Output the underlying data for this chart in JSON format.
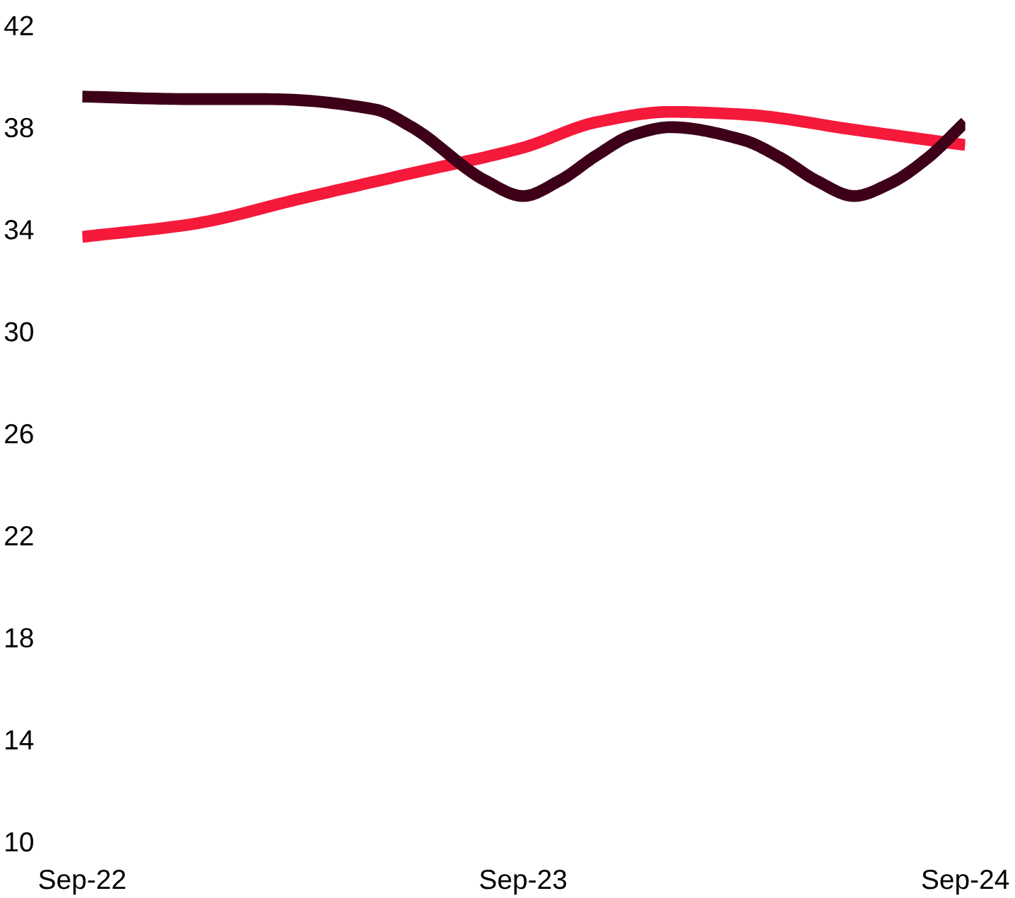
{
  "chart_data": {
    "type": "line",
    "xlim": [
      "2022-09",
      "2024-09"
    ],
    "xticks": [
      {
        "value": "2022-09",
        "label": "Sep-22"
      },
      {
        "value": "2023-09",
        "label": "Sep-23"
      },
      {
        "value": "2024-09",
        "label": "Sep-24"
      }
    ],
    "ylim": [
      10,
      42
    ],
    "yticks": [
      10,
      14,
      18,
      22,
      26,
      30,
      34,
      38,
      42
    ],
    "marker": "none",
    "line_style": "solid",
    "series": [
      {
        "color": "#f5193a",
        "x": [
          "2022-09",
          "2022-12",
          "2023-03",
          "2023-06",
          "2023-09",
          "2023-11",
          "2024-01",
          "2024-03",
          "2024-06",
          "2024-09"
        ],
        "values": [
          33.7,
          34.2,
          35.2,
          36.2,
          37.2,
          38.2,
          38.6,
          38.5,
          37.9,
          37.3
        ]
      },
      {
        "color": "#3d0018",
        "x": [
          "2022-09",
          "2022-12",
          "2023-02",
          "2023-05",
          "2023-06",
          "2023-08",
          "2023-09",
          "2023-10",
          "2023-11",
          "2023-12",
          "2024-01",
          "2024-03",
          "2024-04",
          "2024-05",
          "2024-06",
          "2024-07",
          "2024-08",
          "2024-09"
        ],
        "values": [
          39.2,
          39.1,
          39.1,
          38.7,
          38.0,
          35.9,
          35.3,
          35.9,
          36.9,
          37.7,
          38.0,
          37.5,
          36.8,
          35.9,
          35.3,
          35.8,
          36.8,
          38.2
        ]
      }
    ]
  }
}
